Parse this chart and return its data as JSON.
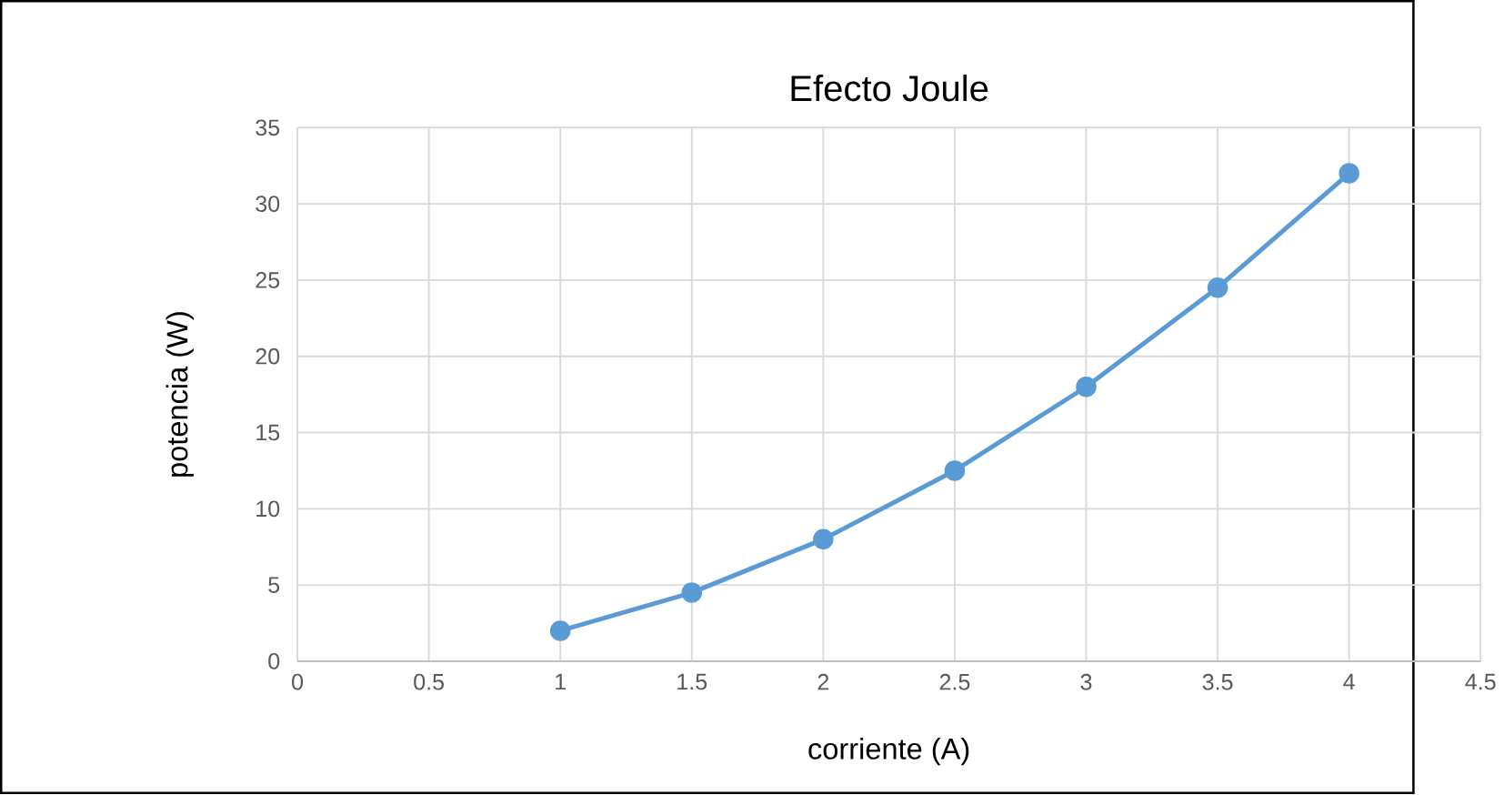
{
  "chart_data": {
    "type": "line",
    "title": "Efecto Joule",
    "xlabel": "corriente (A)",
    "ylabel": "potencia (W)",
    "x": [
      1,
      1.5,
      2,
      2.5,
      3,
      3.5,
      4
    ],
    "series": [
      {
        "color": "#5b9bd5",
        "values": [
          2,
          4.5,
          8,
          12.5,
          18,
          24.5,
          32
        ]
      }
    ],
    "xlim": [
      0,
      4.5
    ],
    "xticks": [
      0,
      0.5,
      1,
      1.5,
      2,
      2.5,
      3,
      3.5,
      4,
      4.5
    ],
    "ylim": [
      0,
      35
    ],
    "yticks": [
      0,
      5,
      10,
      15,
      20,
      25,
      30,
      35
    ],
    "grid": true,
    "marker": "circle",
    "line_style": "solid"
  }
}
